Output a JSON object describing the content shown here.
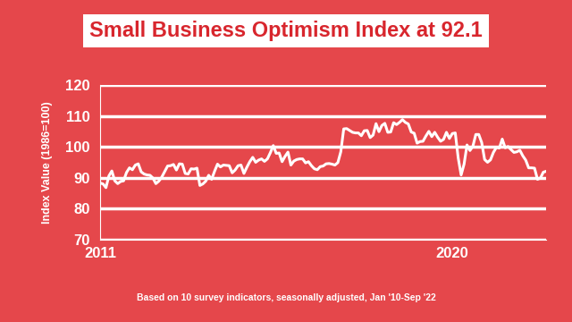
{
  "chart_data": {
    "type": "line",
    "title": "Small Business Optimism Index at 92.1",
    "y_label": "Index Value (1986=100)",
    "annotations": [
      "Based on 10 survey indicators, seasonally adjusted, Jan '10-Sep '22"
    ],
    "categories": [
      "2011",
      null,
      null,
      null,
      null,
      null,
      null,
      null,
      null,
      null,
      null,
      null,
      null,
      null,
      null,
      null,
      null,
      null,
      null,
      null,
      null,
      null,
      null,
      null,
      null,
      null,
      null,
      null,
      null,
      null,
      null,
      null,
      null,
      null,
      null,
      null,
      null,
      null,
      null,
      null,
      null,
      null,
      null,
      null,
      null,
      null,
      null,
      null,
      null,
      null,
      null,
      null,
      null,
      null,
      null,
      null,
      null,
      null,
      null,
      null,
      null,
      null,
      null,
      null,
      null,
      null,
      null,
      null,
      null,
      null,
      null,
      null,
      null,
      null,
      null,
      null,
      null,
      null,
      null,
      null,
      null,
      null,
      null,
      null,
      null,
      null,
      null,
      null,
      null,
      null,
      null,
      null,
      null,
      null,
      null,
      null,
      null,
      null,
      null,
      null,
      null,
      null,
      null,
      null,
      null,
      null,
      null,
      null,
      null,
      null,
      null,
      null,
      null,
      null,
      null,
      null,
      null,
      null,
      null,
      null,
      "2020",
      null,
      null,
      null,
      null,
      null,
      null,
      null,
      null,
      null,
      null,
      null,
      null,
      null,
      null,
      null,
      null,
      null,
      null,
      null,
      null,
      null,
      null,
      null,
      null,
      null,
      null,
      null,
      null,
      null,
      null,
      null,
      null
    ],
    "values": [
      88.3,
      88.0,
      86.8,
      90.6,
      92.2,
      89.0,
      88.1,
      88.8,
      89.0,
      91.7,
      93.2,
      92.6,
      94.1,
      94.5,
      91.9,
      91.2,
      90.9,
      90.8,
      89.9,
      88.1,
      88.9,
      90.2,
      92.0,
      93.8,
      93.9,
      94.3,
      92.5,
      94.5,
      94.4,
      91.4,
      91.2,
      92.9,
      92.8,
      93.1,
      87.5,
      88.0,
      88.9,
      90.8,
      89.5,
      92.1,
      94.4,
      93.5,
      94.1,
      94.0,
      93.9,
      91.6,
      92.5,
      93.9,
      94.1,
      91.4,
      93.4,
      95.2,
      96.6,
      95.0,
      95.7,
      96.1,
      95.3,
      96.1,
      98.1,
      100.4,
      97.9,
      98.0,
      95.2,
      96.9,
      98.3,
      94.1,
      95.4,
      95.9,
      96.1,
      96.1,
      94.8,
      95.2,
      93.9,
      92.9,
      92.6,
      93.6,
      93.8,
      94.5,
      94.6,
      94.4,
      94.1,
      94.9,
      98.4,
      105.8,
      105.9,
      105.3,
      104.7,
      104.5,
      104.5,
      103.6,
      105.2,
      105.3,
      103.0,
      103.8,
      107.5,
      104.9,
      106.9,
      107.6,
      104.7,
      104.8,
      107.8,
      107.2,
      107.9,
      108.8,
      107.9,
      107.4,
      104.8,
      104.4,
      101.2,
      101.7,
      101.8,
      103.5,
      105.0,
      103.3,
      104.7,
      103.1,
      101.8,
      102.4,
      104.7,
      102.7,
      104.3,
      104.5,
      96.4,
      90.9,
      94.4,
      100.6,
      98.8,
      100.2,
      104.0,
      104.0,
      101.4,
      95.9,
      95.0,
      95.8,
      98.2,
      99.8,
      99.6,
      102.5,
      99.7,
      100.1,
      99.1,
      98.2,
      98.4,
      98.9,
      97.1,
      95.7,
      93.2,
      93.2,
      93.1,
      89.5,
      89.9,
      91.8,
      92.1
    ],
    "color": "#ffffff",
    "ylim": [
      70,
      120
    ],
    "yticks": [
      70,
      80,
      90,
      100,
      110,
      120
    ],
    "grid": true
  }
}
